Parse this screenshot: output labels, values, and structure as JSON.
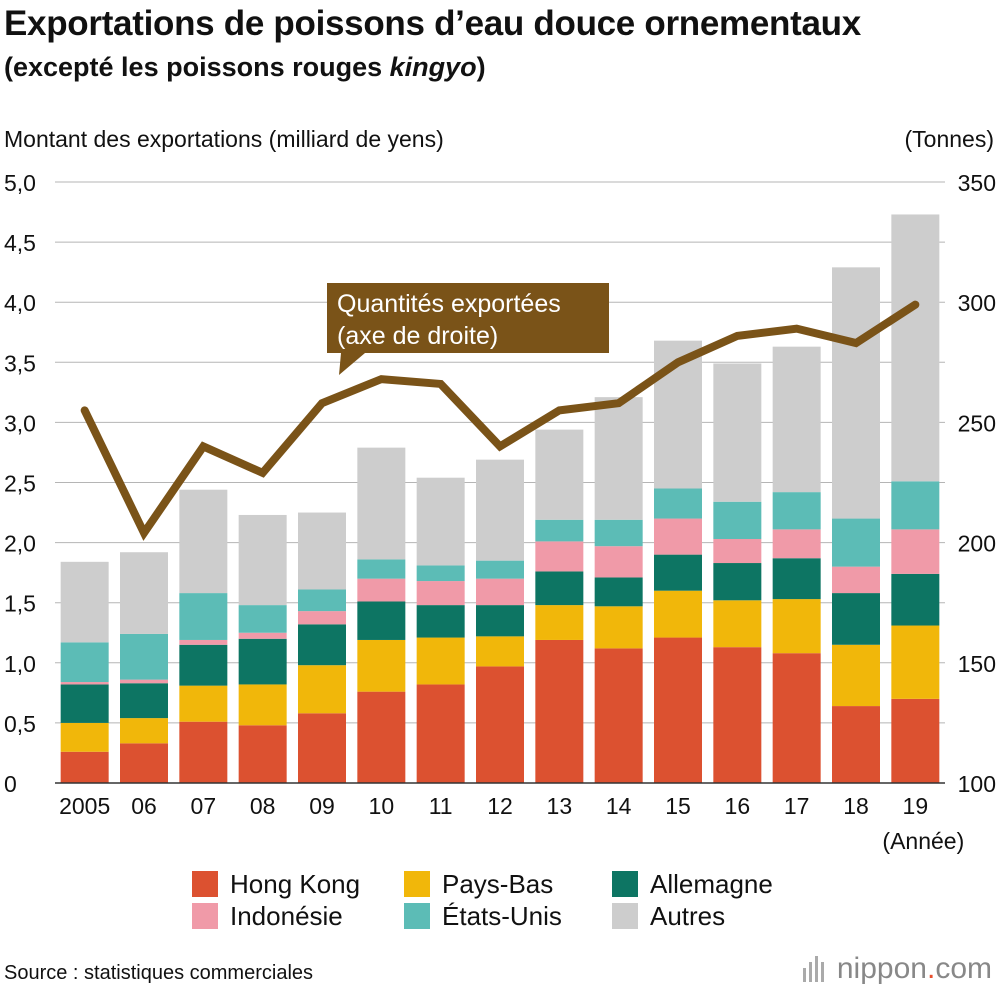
{
  "title": "Exportations de poissons d’eau douce ornementaux",
  "subtitle_main": "(excepté les poissons rouges ",
  "subtitle_italic": "kingyo",
  "subtitle_end": ")",
  "ylabel_left": "Montant des exportations (milliard de yens)",
  "ylabel_right": "(Tonnes)",
  "annotation": [
    "Quantités exportées",
    "(axe de droite)"
  ],
  "x_unit_label": "(Année)",
  "source": "Source : statistiques commerciales",
  "brand": {
    "name": "nippon",
    "dot": ".",
    "tld": "com"
  },
  "legend": [
    {
      "label": "Hong Kong",
      "color": "#dc5130"
    },
    {
      "label": "Pays-Bas",
      "color": "#f1b70a"
    },
    {
      "label": "Allemagne",
      "color": "#0d7563"
    },
    {
      "label": "Indonésie",
      "color": "#f09aa8"
    },
    {
      "label": "États-Unis",
      "color": "#5cbcb6"
    },
    {
      "label": "Autres",
      "color": "#cdcdcd"
    }
  ],
  "chart_data": {
    "type": "bar",
    "stacked": true,
    "title": "Exportations de poissons d’eau douce ornementaux (excepté les poissons rouges kingyo)",
    "xlabel": "(Année)",
    "ylabel": "Montant des exportations (milliard de yens)",
    "ylabel_right": "(Tonnes)",
    "ylim": [
      0,
      5.0
    ],
    "ylim_right": [
      100,
      350
    ],
    "yticks": [
      "0",
      "0,5",
      "1,0",
      "1,5",
      "2,0",
      "2,5",
      "3,0",
      "3,5",
      "4,0",
      "4,5",
      "5,0"
    ],
    "yticks_right": [
      "100",
      "150",
      "200",
      "250",
      "300",
      "350"
    ],
    "categories": [
      "2005",
      "06",
      "07",
      "08",
      "09",
      "10",
      "11",
      "12",
      "13",
      "14",
      "15",
      "16",
      "17",
      "18",
      "19"
    ],
    "series": [
      {
        "name": "Hong Kong",
        "color": "#dc5130",
        "values": [
          0.26,
          0.33,
          0.51,
          0.48,
          0.58,
          0.76,
          0.82,
          0.97,
          1.19,
          1.12,
          1.21,
          1.13,
          1.08,
          0.64,
          0.7
        ]
      },
      {
        "name": "Pays-Bas",
        "color": "#f1b70a",
        "values": [
          0.24,
          0.21,
          0.3,
          0.34,
          0.4,
          0.43,
          0.39,
          0.25,
          0.29,
          0.35,
          0.39,
          0.39,
          0.45,
          0.51,
          0.61
        ]
      },
      {
        "name": "Allemagne",
        "color": "#0d7563",
        "values": [
          0.32,
          0.29,
          0.34,
          0.38,
          0.34,
          0.32,
          0.27,
          0.26,
          0.28,
          0.24,
          0.3,
          0.31,
          0.34,
          0.43,
          0.43
        ]
      },
      {
        "name": "Indonésie",
        "color": "#f09aa8",
        "values": [
          0.02,
          0.03,
          0.04,
          0.05,
          0.11,
          0.19,
          0.2,
          0.22,
          0.25,
          0.26,
          0.3,
          0.2,
          0.24,
          0.22,
          0.37
        ]
      },
      {
        "name": "États-Unis",
        "color": "#5cbcb6",
        "values": [
          0.33,
          0.38,
          0.39,
          0.23,
          0.18,
          0.16,
          0.13,
          0.15,
          0.18,
          0.22,
          0.25,
          0.31,
          0.31,
          0.4,
          0.4
        ]
      },
      {
        "name": "Autres",
        "color": "#cdcdcd",
        "values": [
          0.67,
          0.68,
          0.86,
          0.75,
          0.64,
          0.93,
          0.73,
          0.84,
          0.75,
          1.02,
          1.23,
          1.15,
          1.21,
          2.09,
          2.22
        ]
      }
    ],
    "line": {
      "name": "Quantités exportées (axe de droite)",
      "axis": "right",
      "color": "#7a5318",
      "values": [
        255,
        204,
        240,
        229,
        258,
        268,
        266,
        240,
        255,
        258,
        275,
        286,
        289,
        283,
        299
      ]
    }
  }
}
